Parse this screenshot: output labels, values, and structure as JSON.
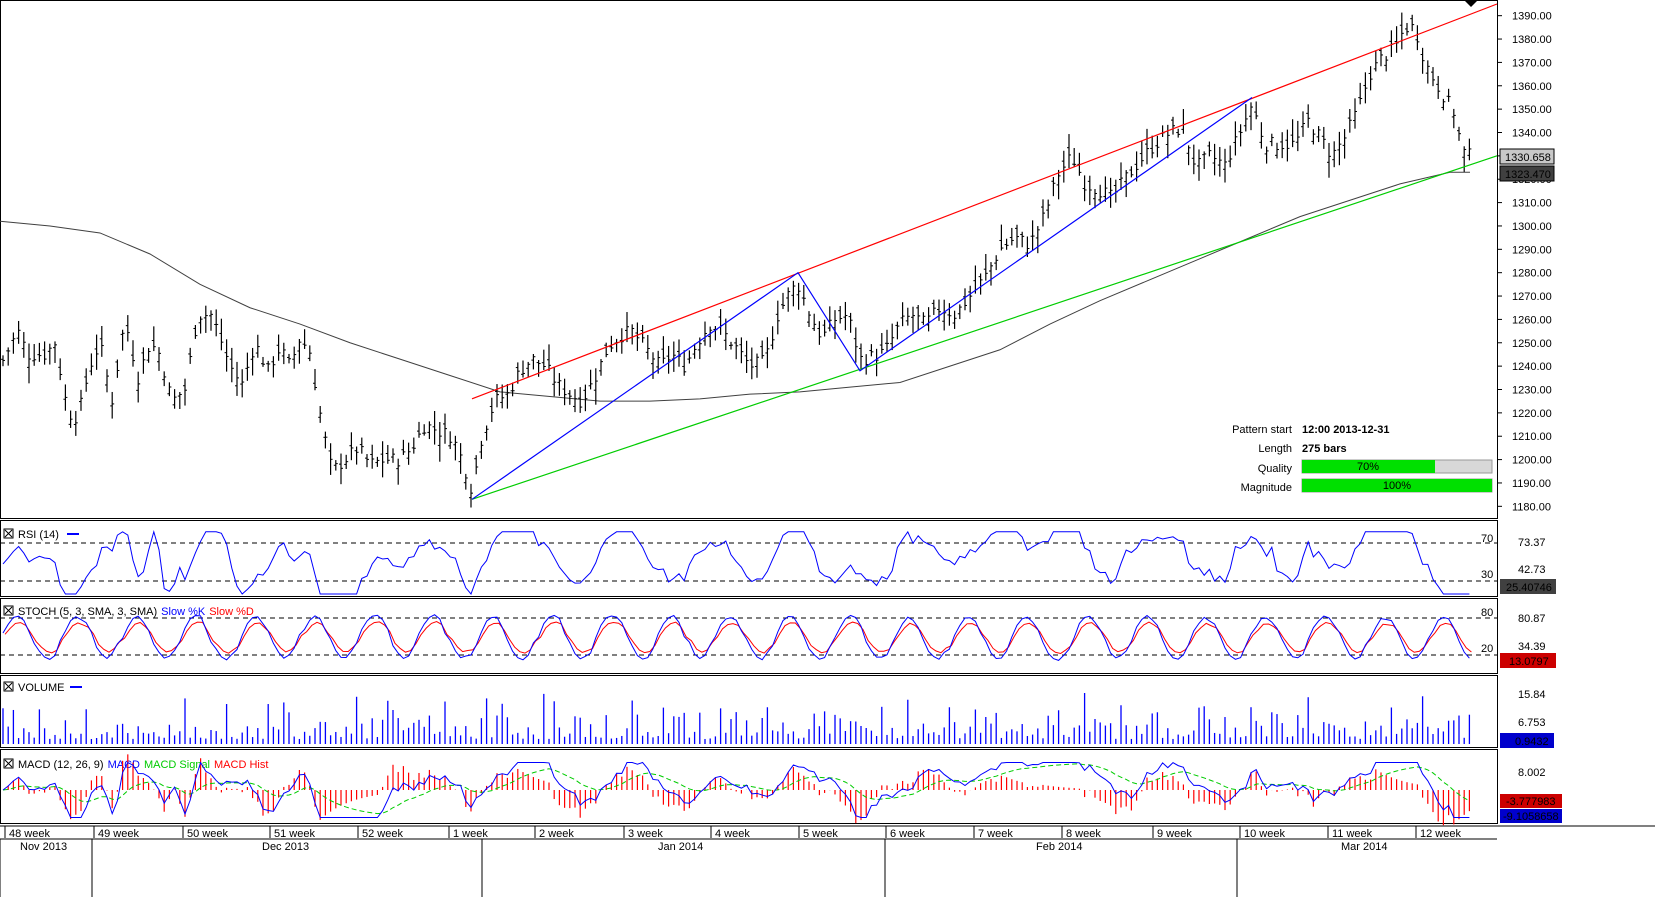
{
  "colors": {
    "price_bars": "#000000",
    "upper_trendline": "#ff0000",
    "lower_trendline": "#00cc00",
    "zigzag": "#0000ff",
    "moving_average": "#404040",
    "rsi": "#0000ff",
    "stoch_k": "#0000ff",
    "stoch_d": "#ff0000",
    "volume": "#0000ff",
    "macd": "#0000ff",
    "macd_signal": "#00cc00",
    "macd_hist": "#ff0000",
    "quality_bar": "#00ff00"
  },
  "pattern_info": {
    "start_label": "Pattern start",
    "start_value": "12:00 2013-12-31",
    "length_label": "Length",
    "length_value": "275 bars",
    "quality_label": "Quality",
    "quality_value": "70%",
    "quality_fraction": 0.7,
    "magnitude_label": "Magnitude",
    "magnitude_value": "100%",
    "magnitude_fraction": 1.0
  },
  "price_labels": {
    "last": "1330.658",
    "ma": "1323.470"
  },
  "rsi_panel": {
    "title": "RSI (14)",
    "ticks": [
      "70",
      "30"
    ],
    "values": [
      "73.37",
      "42.73"
    ],
    "last": "25.40746"
  },
  "stoch_panel": {
    "title_prefix": "STOCH (5, 3, SMA, 3, SMA)",
    "title_k": "Slow %K",
    "title_d": "Slow %D",
    "ticks": [
      "80",
      "20"
    ],
    "values": [
      "80.87",
      "34.39"
    ],
    "last": "13.0797"
  },
  "volume_panel": {
    "title": "VOLUME",
    "values": [
      "15.84",
      "6.753"
    ],
    "last": "0.9432"
  },
  "macd_panel": {
    "title_prefix": "MACD (12, 26, 9)",
    "title_macd": "MACD",
    "title_signal": "MACD Signal",
    "title_hist": "MACD Hist",
    "values": [
      "8.002"
    ],
    "last_signal": "-3.777983",
    "last_macd": "-9.1058658"
  },
  "chart_data": {
    "type": "ohlc",
    "title": "",
    "ylim": [
      1175,
      1395
    ],
    "y_ticks": [
      1180,
      1190,
      1200,
      1210,
      1220,
      1230,
      1240,
      1250,
      1260,
      1270,
      1280,
      1290,
      1300,
      1310,
      1320,
      1330,
      1340,
      1350,
      1360,
      1370,
      1380,
      1390
    ],
    "week_labels": [
      "48 week",
      "49 week",
      "50 week",
      "51 week",
      "52 week",
      "1 week",
      "2 week",
      "3 week",
      "4 week",
      "5 week",
      "6 week",
      "7 week",
      "8 week",
      "9 week",
      "10 week",
      "11 week",
      "12 week"
    ],
    "month_labels": [
      "Nov 2013",
      "Dec 2013",
      "Jan 2014",
      "Feb 2014",
      "Mar 2014"
    ],
    "anchors": [
      [
        0,
        1240
      ],
      [
        18,
        1255
      ],
      [
        28,
        1245
      ],
      [
        45,
        1245
      ],
      [
        55,
        1250
      ],
      [
        68,
        1220
      ],
      [
        78,
        1218
      ],
      [
        90,
        1240
      ],
      [
        100,
        1250
      ],
      [
        112,
        1225
      ],
      [
        125,
        1260
      ],
      [
        138,
        1235
      ],
      [
        150,
        1250
      ],
      [
        160,
        1245
      ],
      [
        172,
        1225
      ],
      [
        185,
        1230
      ],
      [
        198,
        1262
      ],
      [
        212,
        1262
      ],
      [
        230,
        1240
      ],
      [
        242,
        1232
      ],
      [
        255,
        1250
      ],
      [
        268,
        1238
      ],
      [
        280,
        1248
      ],
      [
        290,
        1240
      ],
      [
        300,
        1252
      ],
      [
        310,
        1246
      ],
      [
        322,
        1215
      ],
      [
        332,
        1195
      ],
      [
        345,
        1200
      ],
      [
        358,
        1205
      ],
      [
        370,
        1198
      ],
      [
        385,
        1200
      ],
      [
        400,
        1200
      ],
      [
        412,
        1205
      ],
      [
        425,
        1215
      ],
      [
        440,
        1212
      ],
      [
        452,
        1210
      ],
      [
        462,
        1200
      ],
      [
        472,
        1187
      ],
      [
        482,
        1210
      ],
      [
        495,
        1225
      ],
      [
        508,
        1228
      ],
      [
        520,
        1238
      ],
      [
        532,
        1243
      ],
      [
        545,
        1240
      ],
      [
        558,
        1232
      ],
      [
        570,
        1228
      ],
      [
        582,
        1225
      ],
      [
        595,
        1235
      ],
      [
        608,
        1248
      ],
      [
        620,
        1253
      ],
      [
        632,
        1255
      ],
      [
        645,
        1248
      ],
      [
        660,
        1240
      ],
      [
        672,
        1245
      ],
      [
        685,
        1240
      ],
      [
        697,
        1250
      ],
      [
        710,
        1258
      ],
      [
        722,
        1255
      ],
      [
        736,
        1248
      ],
      [
        750,
        1240
      ],
      [
        765,
        1242
      ],
      [
        778,
        1262
      ],
      [
        790,
        1272
      ],
      [
        798,
        1275
      ],
      [
        810,
        1262
      ],
      [
        822,
        1252
      ],
      [
        835,
        1260
      ],
      [
        848,
        1262
      ],
      [
        860,
        1243
      ],
      [
        872,
        1244
      ],
      [
        885,
        1246
      ],
      [
        900,
        1258
      ],
      [
        912,
        1262
      ],
      [
        925,
        1258
      ],
      [
        940,
        1265
      ],
      [
        955,
        1262
      ],
      [
        970,
        1270
      ],
      [
        985,
        1278
      ],
      [
        1000,
        1290
      ],
      [
        1015,
        1295
      ],
      [
        1030,
        1292
      ],
      [
        1045,
        1305
      ],
      [
        1058,
        1322
      ],
      [
        1072,
        1330
      ],
      [
        1085,
        1318
      ],
      [
        1098,
        1316
      ],
      [
        1112,
        1312
      ],
      [
        1125,
        1320
      ],
      [
        1140,
        1328
      ],
      [
        1155,
        1335
      ],
      [
        1170,
        1340
      ],
      [
        1183,
        1342
      ],
      [
        1196,
        1325
      ],
      [
        1210,
        1330
      ],
      [
        1225,
        1326
      ],
      [
        1240,
        1340
      ],
      [
        1252,
        1352
      ],
      [
        1265,
        1335
      ],
      [
        1280,
        1335
      ],
      [
        1295,
        1335
      ],
      [
        1308,
        1345
      ],
      [
        1320,
        1338
      ],
      [
        1332,
        1330
      ],
      [
        1345,
        1338
      ],
      [
        1358,
        1350
      ],
      [
        1370,
        1365
      ],
      [
        1382,
        1372
      ],
      [
        1395,
        1376
      ],
      [
        1405,
        1385
      ],
      [
        1415,
        1385
      ],
      [
        1425,
        1370
      ],
      [
        1435,
        1362
      ],
      [
        1445,
        1355
      ],
      [
        1455,
        1348
      ],
      [
        1462,
        1332
      ],
      [
        1470,
        1330
      ]
    ],
    "ma_points": [
      [
        0,
        1302
      ],
      [
        50,
        1300
      ],
      [
        100,
        1297
      ],
      [
        150,
        1288
      ],
      [
        200,
        1275
      ],
      [
        250,
        1265
      ],
      [
        300,
        1258
      ],
      [
        350,
        1250
      ],
      [
        400,
        1243
      ],
      [
        450,
        1236
      ],
      [
        500,
        1229
      ],
      [
        550,
        1227
      ],
      [
        600,
        1225
      ],
      [
        650,
        1225
      ],
      [
        700,
        1226
      ],
      [
        750,
        1228
      ],
      [
        800,
        1229
      ],
      [
        850,
        1231
      ],
      [
        900,
        1233
      ],
      [
        950,
        1240
      ],
      [
        1000,
        1247
      ],
      [
        1050,
        1258
      ],
      [
        1100,
        1268
      ],
      [
        1150,
        1277
      ],
      [
        1200,
        1286
      ],
      [
        1250,
        1295
      ],
      [
        1300,
        1304
      ],
      [
        1350,
        1311
      ],
      [
        1400,
        1318
      ],
      [
        1450,
        1323
      ],
      [
        1470,
        1323
      ]
    ],
    "upper_trendline": [
      [
        472,
        1226
      ],
      [
        1497,
        1395
      ]
    ],
    "lower_trendline": [
      [
        472,
        1183
      ],
      [
        1497,
        1330
      ]
    ],
    "zigzag": [
      [
        472,
        1183
      ],
      [
        798,
        1280
      ],
      [
        860,
        1238
      ],
      [
        1252,
        1355
      ]
    ]
  }
}
